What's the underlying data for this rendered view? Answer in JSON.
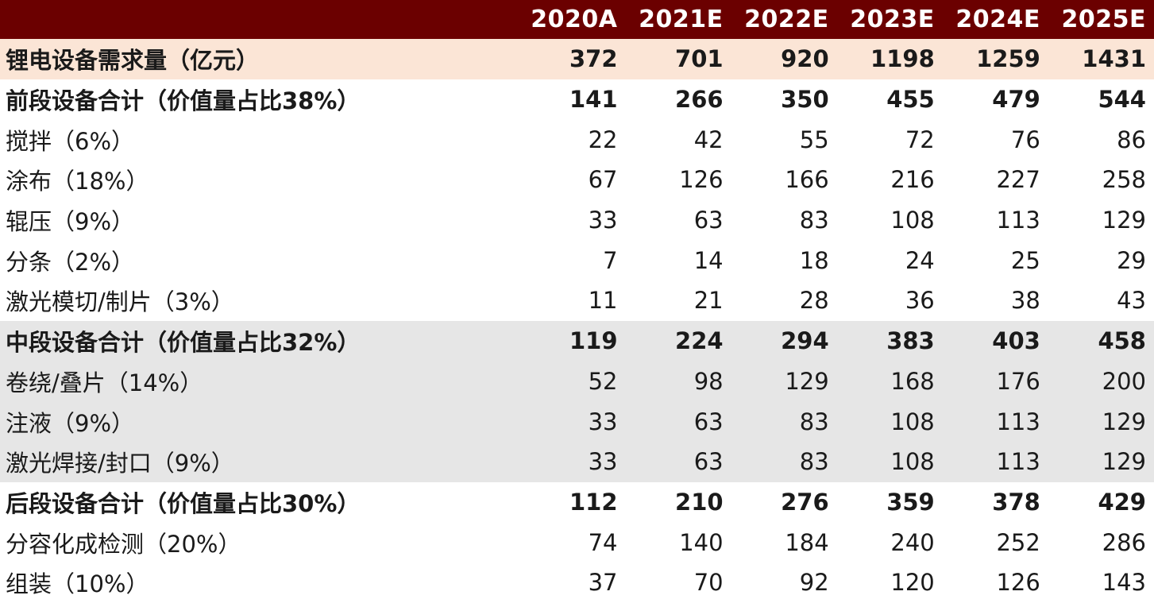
{
  "chart_data": {
    "type": "table",
    "columns": [
      "",
      "2020A",
      "2021E",
      "2022E",
      "2023E",
      "2024E",
      "2025E"
    ],
    "rows": [
      {
        "label": "锂电设备需求量（亿元）",
        "values": [
          "372",
          "701",
          "920",
          "1198",
          "1259",
          "1431"
        ],
        "style": "demand"
      },
      {
        "label": "前段设备合计（价值量占比38%）",
        "values": [
          "141",
          "266",
          "350",
          "455",
          "479",
          "544"
        ],
        "style": "subtotal"
      },
      {
        "label": "搅拌（6%）",
        "values": [
          "22",
          "42",
          "55",
          "72",
          "76",
          "86"
        ],
        "style": "item"
      },
      {
        "label": "涂布（18%）",
        "values": [
          "67",
          "126",
          "166",
          "216",
          "227",
          "258"
        ],
        "style": "item"
      },
      {
        "label": "辊压（9%）",
        "values": [
          "33",
          "63",
          "83",
          "108",
          "113",
          "129"
        ],
        "style": "item"
      },
      {
        "label": "分条（2%）",
        "values": [
          "7",
          "14",
          "18",
          "24",
          "25",
          "29"
        ],
        "style": "item"
      },
      {
        "label": "激光模切/制片（3%）",
        "values": [
          "11",
          "21",
          "28",
          "36",
          "38",
          "43"
        ],
        "style": "item"
      },
      {
        "label": "中段设备合计（价值量占比32%）",
        "values": [
          "119",
          "224",
          "294",
          "383",
          "403",
          "458"
        ],
        "style": "subtotal mid"
      },
      {
        "label": "卷绕/叠片（14%）",
        "values": [
          "52",
          "98",
          "129",
          "168",
          "176",
          "200"
        ],
        "style": "mid"
      },
      {
        "label": "注液（9%）",
        "values": [
          "33",
          "63",
          "83",
          "108",
          "113",
          "129"
        ],
        "style": "mid"
      },
      {
        "label": "激光焊接/封口（9%）",
        "values": [
          "33",
          "63",
          "83",
          "108",
          "113",
          "129"
        ],
        "style": "mid"
      },
      {
        "label": "后段设备合计（价值量占比30%）",
        "values": [
          "112",
          "210",
          "276",
          "359",
          "378",
          "429"
        ],
        "style": "subtotal"
      },
      {
        "label": "分容化成检测（20%）",
        "values": [
          "74",
          "140",
          "184",
          "240",
          "252",
          "286"
        ],
        "style": "item"
      },
      {
        "label": "组装（10%）",
        "values": [
          "37",
          "70",
          "92",
          "120",
          "126",
          "143"
        ],
        "style": "item"
      }
    ]
  },
  "colors": {
    "header_bg": "#6b0000",
    "header_text": "#ffffff",
    "demand_row_bg": "#fbe5d6",
    "mid_section_bg": "#e6e6e6"
  }
}
